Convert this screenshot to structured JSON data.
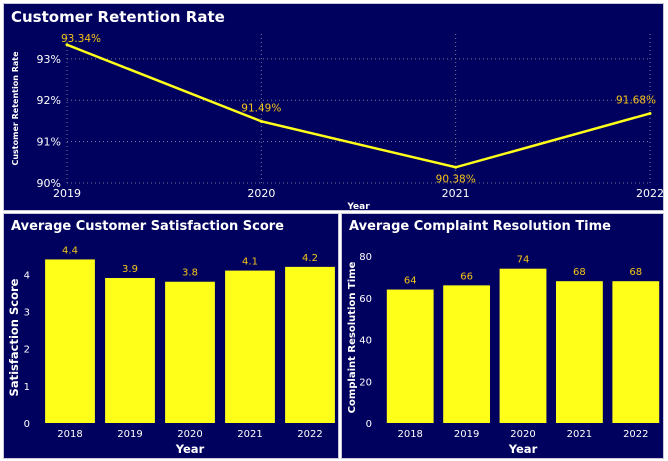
{
  "colors": {
    "panel_bg": "#00005e",
    "mark": "#ffff1a",
    "label": "#f5c518",
    "text": "#ffffff",
    "grid": "#7a7a9a"
  },
  "chart_data": [
    {
      "type": "line",
      "title": "Customer Retention Rate",
      "xlabel": "Year",
      "ylabel": "Customer Retention Rate",
      "x": [
        "2019",
        "2020",
        "2021",
        "2022"
      ],
      "values": [
        93.34,
        91.49,
        90.38,
        91.68
      ],
      "data_labels": [
        "93.34%",
        "91.49%",
        "90.38%",
        "91.68%"
      ],
      "ylim": [
        90,
        93.6
      ],
      "yticks": [
        90,
        91,
        92,
        93
      ],
      "ytick_labels": [
        "90%",
        "91%",
        "92%",
        "93%"
      ],
      "grid": true
    },
    {
      "type": "bar",
      "title": "Average Customer Satisfaction Score",
      "xlabel": "Year",
      "ylabel": "Satisfaction Score",
      "categories": [
        "2018",
        "2019",
        "2020",
        "2021",
        "2022"
      ],
      "values": [
        4.4,
        3.9,
        3.8,
        4.1,
        4.2
      ],
      "data_labels": [
        "4.4",
        "3.9",
        "3.8",
        "4.1",
        "4.2"
      ],
      "ylim": [
        0,
        4.6
      ],
      "yticks": [
        0,
        1,
        2,
        3,
        4
      ],
      "ytick_labels": [
        "0",
        "1",
        "2",
        "3",
        "4"
      ],
      "grid": false
    },
    {
      "type": "bar",
      "title": "Average Complaint Resolution Time",
      "xlabel": "Year",
      "ylabel": "Complaint Resolution Time",
      "categories": [
        "2018",
        "2019",
        "2020",
        "2021",
        "2022"
      ],
      "values": [
        64,
        66,
        74,
        68,
        68
      ],
      "data_labels": [
        "64",
        "66",
        "74",
        "68",
        "68"
      ],
      "ylim": [
        0,
        82
      ],
      "yticks": [
        0,
        20,
        40,
        60,
        80
      ],
      "ytick_labels": [
        "0",
        "20",
        "40",
        "60",
        "80"
      ],
      "grid": false
    }
  ]
}
